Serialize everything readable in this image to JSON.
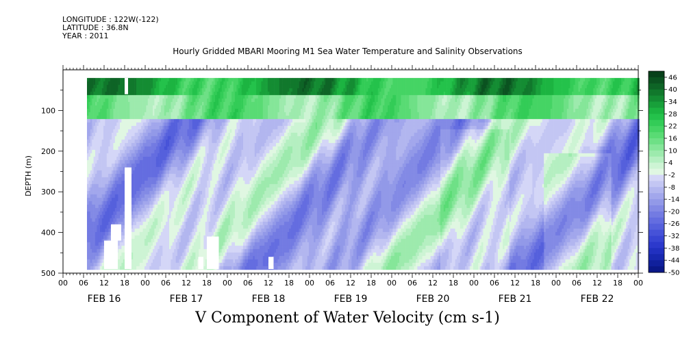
{
  "header": {
    "longitude": "LONGITUDE : 122W(-122)",
    "latitude": "LATITUDE : 36.8N",
    "year": "YEAR : 2011"
  },
  "chart_data": {
    "type": "heatmap",
    "title": "Hourly Gridded MBARI Mooring M1 Sea Water Temperature and Salinity Observations",
    "variable_title": "V Component of Water Velocity (cm s-1)",
    "ylabel": "DEPTH (m)",
    "ylim": [
      500,
      0
    ],
    "y_ticks": [
      100,
      200,
      300,
      400,
      500
    ],
    "x_hour_labels": [
      "00",
      "06",
      "12",
      "18",
      "00",
      "06",
      "12",
      "18",
      "00",
      "06",
      "12",
      "18",
      "00",
      "06",
      "12",
      "18",
      "00",
      "06",
      "12",
      "18",
      "00",
      "06",
      "12",
      "18",
      "00",
      "06",
      "12",
      "18",
      "00"
    ],
    "day_labels": [
      "FEB 16",
      "FEB 17",
      "FEB 18",
      "FEB 19",
      "FEB 20",
      "FEB 21",
      "FEB 22"
    ],
    "colorbar": {
      "labels": [
        "46",
        "40",
        "34",
        "28",
        "22",
        "16",
        "10",
        "4",
        "-2",
        "-8",
        "-14",
        "-20",
        "-26",
        "-32",
        "-38",
        "-44",
        "-50"
      ],
      "levels": [
        49,
        46,
        43,
        40,
        37,
        34,
        31,
        28,
        25,
        22,
        19,
        16,
        13,
        10,
        7,
        4,
        1,
        -2,
        -5,
        -8,
        -11,
        -14,
        -17,
        -20,
        -23,
        -26,
        -29,
        -32,
        -35,
        -38,
        -41,
        -44,
        -47,
        -50
      ],
      "colors": [
        "#08401a",
        "#0b5220",
        "#0e6426",
        "#11782c",
        "#148c33",
        "#18a03a",
        "#1cb441",
        "#24c24b",
        "#33cc57",
        "#45d464",
        "#59db74",
        "#6ee086",
        "#85e699",
        "#9deaad",
        "#b5efc1",
        "#cdf4d4",
        "#e0f7e2",
        "#d4d6f7",
        "#c3c6f3",
        "#b2b6ef",
        "#a2a7ec",
        "#9299e8",
        "#838ae5",
        "#737be2",
        "#646de0",
        "#5560dc",
        "#4652d8",
        "#3845d3",
        "#2c39cc",
        "#2130c0",
        "#1828b0",
        "#10209c",
        "#0a1888"
      ]
    },
    "colors": {
      "surface_green": "#148c33",
      "upper_green": "#59db74",
      "mid_blue": "#9299e8",
      "light_green": "#b5efc1"
    }
  }
}
